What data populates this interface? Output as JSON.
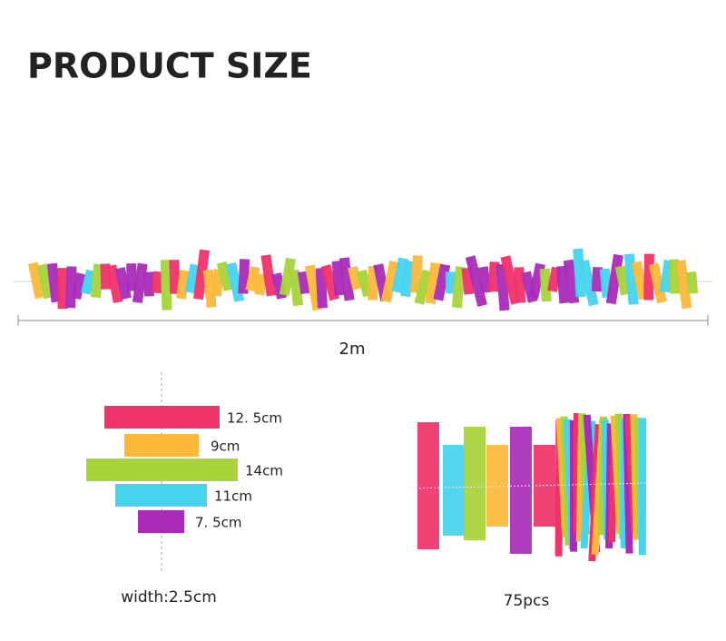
{
  "header": {
    "title": "PRODUCT SIZE"
  },
  "garland": {
    "length": "2m"
  },
  "strips": [
    {
      "label": "12. 5cm",
      "color": "#f0326a"
    },
    {
      "label": "9cm",
      "color": "#fbb83a"
    },
    {
      "label": "14cm",
      "color": "#a6d43a"
    },
    {
      "label": "11cm",
      "color": "#45d3ee"
    },
    {
      "label": "7. 5cm",
      "color": "#a92bb8"
    }
  ],
  "width_note": "width:2.5cm",
  "count_note": "75pcs"
}
